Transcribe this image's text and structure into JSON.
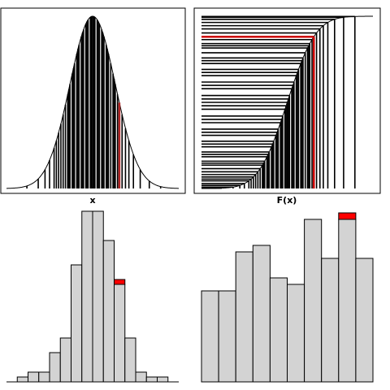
{
  "chart_data": [
    {
      "type": "density",
      "xlabel": "x",
      "xlim": [
        -3.8,
        3.8
      ],
      "color": "#000000",
      "highlight_color": "#b22222",
      "highlight": 44,
      "samples": [
        -2.9,
        -2.4,
        -2.1,
        -1.9,
        -1.7,
        -1.6,
        -1.5,
        -1.4,
        -1.3,
        -1.2,
        -1.1,
        -1.05,
        -1.0,
        -0.9,
        -0.85,
        -0.8,
        -0.7,
        -0.65,
        -0.6,
        -0.5,
        -0.45,
        -0.4,
        -0.3,
        -0.25,
        -0.2,
        -0.1,
        -0.05,
        0,
        0.05,
        0.1,
        0.2,
        0.25,
        0.3,
        0.4,
        0.45,
        0.5,
        0.6,
        0.65,
        0.7,
        0.8,
        0.9,
        0.95,
        1.0,
        1.1,
        1.18,
        1.3,
        1.45,
        1.6,
        1.8,
        2.1,
        2.5,
        3.0
      ]
    },
    {
      "type": "cdf",
      "xlabel": "F(x)",
      "xlim": [
        -3.8,
        3.8
      ],
      "color": "#000000",
      "highlight_color": "#cc0000"
    },
    {
      "type": "histogram",
      "bins": [
        -4,
        -3.5,
        -3,
        -2.5,
        -2,
        -1.5,
        -1,
        -0.5,
        0,
        0.5,
        1,
        1.5,
        2,
        2.5,
        3,
        3.5,
        4
      ],
      "values": [
        0,
        1,
        2,
        2,
        6,
        9,
        24,
        35,
        35,
        29,
        20,
        9,
        2,
        1,
        1,
        0
      ],
      "ylim": [
        0,
        35
      ],
      "color": "#d3d3d3",
      "highlight_color": "#ff0000",
      "highlight": {
        "bin": 10,
        "value": 1
      }
    },
    {
      "type": "histogram",
      "bins": [
        0,
        0.1,
        0.2,
        0.3,
        0.4,
        0.5,
        0.6,
        0.7,
        0.8,
        0.9,
        1
      ],
      "values": [
        14,
        14,
        20,
        21,
        16,
        15,
        25,
        19,
        25,
        19
      ],
      "ylim": [
        0,
        26.25
      ],
      "color": "#d3d3d3",
      "highlight_color": "#ff0000",
      "highlight": {
        "bin": 8,
        "value": 1
      }
    }
  ]
}
